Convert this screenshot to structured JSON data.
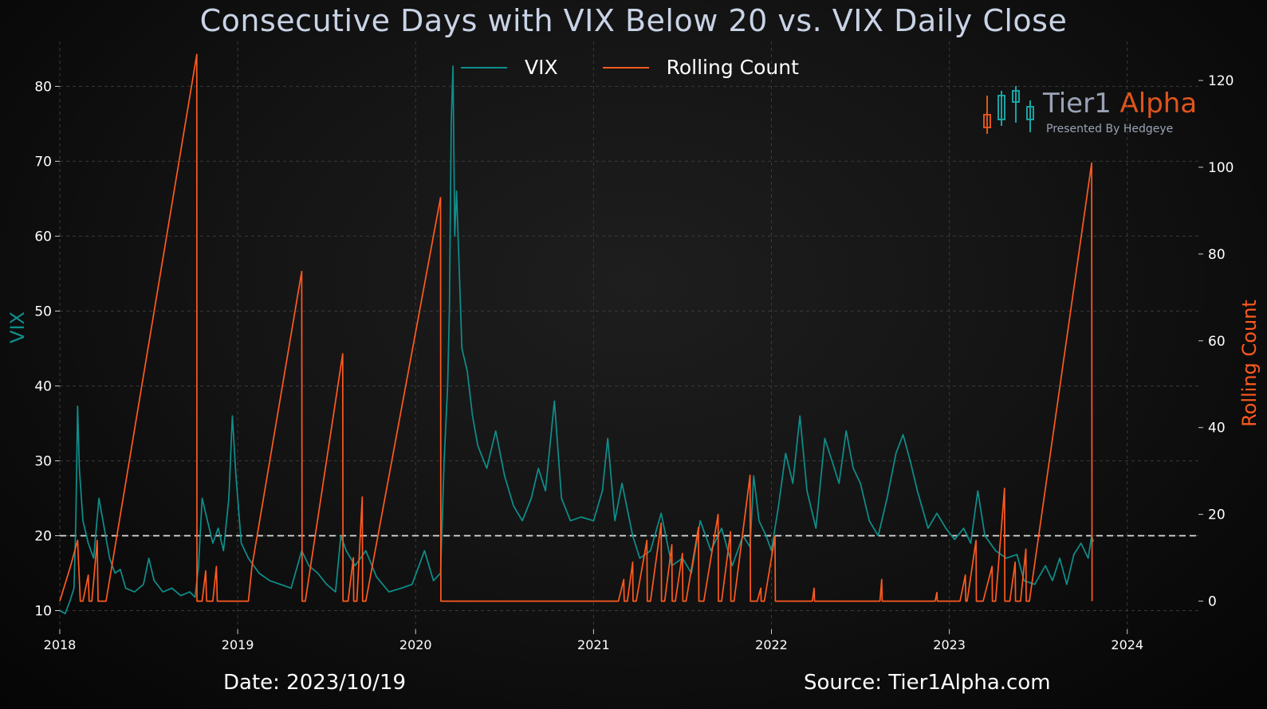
{
  "title": "Consecutive Days with VIX Below 20 vs. VIX Daily Close",
  "footer": {
    "date": "Date: 2023/10/19",
    "source": "Source: Tier1Alpha.com"
  },
  "logo": {
    "name_part1": "Tier1",
    "name_part2": "Alpha",
    "tagline": "Presented By Hedgeye"
  },
  "colors": {
    "vix": "#0e8f8c",
    "rolling": "#ff5a1f",
    "threshold": "#dddddd",
    "grid": "#3a3a3a",
    "title": "#c9d3e6",
    "logo_gray": "#9aa3b5",
    "logo_orange": "#e0541d"
  },
  "chart_data": {
    "type": "line",
    "title": "Consecutive Days with VIX Below 20 vs. VIX Daily Close",
    "xlabel": "",
    "ylabel": "VIX",
    "y2label": "Rolling Count",
    "xlim": [
      2018.0,
      2024.4
    ],
    "ylim": [
      7.5,
      86
    ],
    "y2lim": [
      -6.5,
      129
    ],
    "xticks": [
      2018,
      2019,
      2020,
      2021,
      2022,
      2023,
      2024
    ],
    "xtick_labels": [
      "2018",
      "2019",
      "2020",
      "2021",
      "2022",
      "2023",
      "2024"
    ],
    "yticks": [
      10,
      20,
      30,
      40,
      50,
      60,
      70,
      80
    ],
    "y2ticks": [
      0,
      20,
      40,
      60,
      80,
      100,
      120
    ],
    "threshold": 20,
    "legend": [
      "VIX",
      "Rolling Count"
    ],
    "legend_position": "top-center",
    "grid": true,
    "series": [
      {
        "name": "VIX",
        "axis": "left",
        "points": [
          [
            2018.0,
            10.0
          ],
          [
            2018.03,
            9.6
          ],
          [
            2018.06,
            11.5
          ],
          [
            2018.08,
            13.0
          ],
          [
            2018.09,
            22.0
          ],
          [
            2018.1,
            37.3
          ],
          [
            2018.11,
            29.0
          ],
          [
            2018.13,
            22.0
          ],
          [
            2018.16,
            19.0
          ],
          [
            2018.19,
            17.0
          ],
          [
            2018.22,
            25.0
          ],
          [
            2018.25,
            21.0
          ],
          [
            2018.28,
            17.0
          ],
          [
            2018.31,
            15.0
          ],
          [
            2018.34,
            15.5
          ],
          [
            2018.37,
            13.0
          ],
          [
            2018.42,
            12.5
          ],
          [
            2018.47,
            13.5
          ],
          [
            2018.5,
            17.0
          ],
          [
            2018.53,
            14.0
          ],
          [
            2018.58,
            12.5
          ],
          [
            2018.63,
            13.0
          ],
          [
            2018.68,
            12.0
          ],
          [
            2018.73,
            12.5
          ],
          [
            2018.76,
            11.8
          ],
          [
            2018.78,
            16.0
          ],
          [
            2018.8,
            25.0
          ],
          [
            2018.83,
            22.0
          ],
          [
            2018.86,
            19.0
          ],
          [
            2018.89,
            21.0
          ],
          [
            2018.92,
            18.0
          ],
          [
            2018.95,
            25.0
          ],
          [
            2018.97,
            36.0
          ],
          [
            2018.99,
            28.0
          ],
          [
            2019.02,
            19.0
          ],
          [
            2019.06,
            17.0
          ],
          [
            2019.12,
            15.0
          ],
          [
            2019.18,
            14.0
          ],
          [
            2019.24,
            13.5
          ],
          [
            2019.3,
            13.0
          ],
          [
            2019.36,
            18.0
          ],
          [
            2019.4,
            16.0
          ],
          [
            2019.45,
            15.0
          ],
          [
            2019.5,
            13.5
          ],
          [
            2019.55,
            12.5
          ],
          [
            2019.58,
            20.0
          ],
          [
            2019.61,
            18.0
          ],
          [
            2019.66,
            16.0
          ],
          [
            2019.72,
            18.0
          ],
          [
            2019.78,
            14.5
          ],
          [
            2019.85,
            12.5
          ],
          [
            2019.92,
            13.0
          ],
          [
            2019.98,
            13.5
          ],
          [
            2020.05,
            18.0
          ],
          [
            2020.1,
            14.0
          ],
          [
            2020.14,
            15.0
          ],
          [
            2020.16,
            30.0
          ],
          [
            2020.18,
            40.0
          ],
          [
            2020.19,
            50.0
          ],
          [
            2020.2,
            75.0
          ],
          [
            2020.21,
            82.7
          ],
          [
            2020.22,
            60.0
          ],
          [
            2020.23,
            66.0
          ],
          [
            2020.26,
            45.0
          ],
          [
            2020.29,
            42.0
          ],
          [
            2020.32,
            36.0
          ],
          [
            2020.35,
            32.0
          ],
          [
            2020.4,
            29.0
          ],
          [
            2020.45,
            34.0
          ],
          [
            2020.5,
            28.0
          ],
          [
            2020.55,
            24.0
          ],
          [
            2020.6,
            22.0
          ],
          [
            2020.65,
            25.0
          ],
          [
            2020.69,
            29.0
          ],
          [
            2020.73,
            26.0
          ],
          [
            2020.78,
            38.0
          ],
          [
            2020.82,
            25.0
          ],
          [
            2020.87,
            22.0
          ],
          [
            2020.93,
            22.5
          ],
          [
            2021.0,
            22.0
          ],
          [
            2021.05,
            26.0
          ],
          [
            2021.08,
            33.0
          ],
          [
            2021.12,
            22.0
          ],
          [
            2021.16,
            27.0
          ],
          [
            2021.22,
            20.0
          ],
          [
            2021.26,
            17.0
          ],
          [
            2021.32,
            18.0
          ],
          [
            2021.38,
            23.0
          ],
          [
            2021.44,
            16.0
          ],
          [
            2021.5,
            17.0
          ],
          [
            2021.55,
            15.0
          ],
          [
            2021.6,
            22.0
          ],
          [
            2021.66,
            18.0
          ],
          [
            2021.72,
            21.0
          ],
          [
            2021.78,
            16.0
          ],
          [
            2021.84,
            20.0
          ],
          [
            2021.88,
            18.5
          ],
          [
            2021.9,
            28.0
          ],
          [
            2021.93,
            22.0
          ],
          [
            2021.97,
            20.0
          ],
          [
            2022.0,
            18.0
          ],
          [
            2022.04,
            24.0
          ],
          [
            2022.08,
            31.0
          ],
          [
            2022.12,
            27.0
          ],
          [
            2022.16,
            36.0
          ],
          [
            2022.2,
            26.0
          ],
          [
            2022.25,
            21.0
          ],
          [
            2022.3,
            33.0
          ],
          [
            2022.34,
            30.0
          ],
          [
            2022.38,
            27.0
          ],
          [
            2022.42,
            34.0
          ],
          [
            2022.46,
            29.0
          ],
          [
            2022.5,
            27.0
          ],
          [
            2022.55,
            22.0
          ],
          [
            2022.6,
            20.0
          ],
          [
            2022.65,
            25.0
          ],
          [
            2022.7,
            31.0
          ],
          [
            2022.74,
            33.5
          ],
          [
            2022.78,
            30.0
          ],
          [
            2022.82,
            26.0
          ],
          [
            2022.88,
            21.0
          ],
          [
            2022.93,
            23.0
          ],
          [
            2022.98,
            21.0
          ],
          [
            2023.03,
            19.5
          ],
          [
            2023.08,
            21.0
          ],
          [
            2023.12,
            19.0
          ],
          [
            2023.16,
            26.0
          ],
          [
            2023.2,
            20.0
          ],
          [
            2023.26,
            18.0
          ],
          [
            2023.32,
            17.0
          ],
          [
            2023.38,
            17.5
          ],
          [
            2023.42,
            14.0
          ],
          [
            2023.48,
            13.5
          ],
          [
            2023.54,
            16.0
          ],
          [
            2023.58,
            14.0
          ],
          [
            2023.62,
            17.0
          ],
          [
            2023.66,
            13.5
          ],
          [
            2023.7,
            17.5
          ],
          [
            2023.74,
            19.0
          ],
          [
            2023.78,
            17.0
          ],
          [
            2023.8,
            20.0
          ],
          [
            2023.81,
            19.2
          ]
        ]
      },
      {
        "name": "Rolling Count",
        "axis": "right",
        "points": [
          [
            2018.0,
            0
          ],
          [
            2018.06,
            8
          ],
          [
            2018.1,
            14
          ],
          [
            2018.115,
            0
          ],
          [
            2018.13,
            0
          ],
          [
            2018.16,
            6
          ],
          [
            2018.165,
            0
          ],
          [
            2018.18,
            0
          ],
          [
            2018.21,
            14
          ],
          [
            2018.215,
            0
          ],
          [
            2018.26,
            0
          ],
          [
            2018.77,
            126
          ],
          [
            2018.771,
            0
          ],
          [
            2018.8,
            0
          ],
          [
            2018.82,
            7
          ],
          [
            2018.825,
            0
          ],
          [
            2018.86,
            0
          ],
          [
            2018.88,
            8
          ],
          [
            2018.885,
            0
          ],
          [
            2019.06,
            0
          ],
          [
            2019.08,
            8
          ],
          [
            2019.36,
            76
          ],
          [
            2019.362,
            0
          ],
          [
            2019.38,
            0
          ],
          [
            2019.59,
            57
          ],
          [
            2019.592,
            0
          ],
          [
            2019.62,
            0
          ],
          [
            2019.65,
            10
          ],
          [
            2019.652,
            0
          ],
          [
            2019.67,
            0
          ],
          [
            2019.7,
            24
          ],
          [
            2019.702,
            0
          ],
          [
            2019.72,
            0
          ],
          [
            2020.14,
            93
          ],
          [
            2020.142,
            0
          ],
          [
            2020.9,
            0
          ],
          [
            2021.14,
            0
          ],
          [
            2021.17,
            5
          ],
          [
            2021.172,
            0
          ],
          [
            2021.19,
            0
          ],
          [
            2021.22,
            9
          ],
          [
            2021.222,
            0
          ],
          [
            2021.24,
            0
          ],
          [
            2021.3,
            14
          ],
          [
            2021.302,
            0
          ],
          [
            2021.32,
            0
          ],
          [
            2021.38,
            18
          ],
          [
            2021.382,
            0
          ],
          [
            2021.4,
            0
          ],
          [
            2021.44,
            13
          ],
          [
            2021.442,
            0
          ],
          [
            2021.46,
            0
          ],
          [
            2021.5,
            11
          ],
          [
            2021.502,
            0
          ],
          [
            2021.52,
            0
          ],
          [
            2021.59,
            17
          ],
          [
            2021.592,
            0
          ],
          [
            2021.62,
            0
          ],
          [
            2021.7,
            20
          ],
          [
            2021.702,
            0
          ],
          [
            2021.72,
            0
          ],
          [
            2021.77,
            16
          ],
          [
            2021.772,
            0
          ],
          [
            2021.79,
            0
          ],
          [
            2021.88,
            29
          ],
          [
            2021.882,
            0
          ],
          [
            2021.92,
            0
          ],
          [
            2021.94,
            3
          ],
          [
            2021.942,
            0
          ],
          [
            2021.96,
            0
          ],
          [
            2022.02,
            15
          ],
          [
            2022.022,
            0
          ],
          [
            2022.23,
            0
          ],
          [
            2022.24,
            3
          ],
          [
            2022.242,
            0
          ],
          [
            2022.61,
            0
          ],
          [
            2022.62,
            5
          ],
          [
            2022.622,
            0
          ],
          [
            2022.92,
            0
          ],
          [
            2022.93,
            2
          ],
          [
            2022.932,
            0
          ],
          [
            2023.06,
            0
          ],
          [
            2023.09,
            6
          ],
          [
            2023.092,
            0
          ],
          [
            2023.1,
            0
          ],
          [
            2023.15,
            14
          ],
          [
            2023.152,
            0
          ],
          [
            2023.19,
            0
          ],
          [
            2023.24,
            8
          ],
          [
            2023.242,
            0
          ],
          [
            2023.26,
            0
          ],
          [
            2023.31,
            26
          ],
          [
            2023.312,
            0
          ],
          [
            2023.34,
            0
          ],
          [
            2023.37,
            9
          ],
          [
            2023.372,
            0
          ],
          [
            2023.4,
            0
          ],
          [
            2023.43,
            12
          ],
          [
            2023.432,
            0
          ],
          [
            2023.45,
            0
          ],
          [
            2023.8,
            101
          ],
          [
            2023.802,
            0
          ]
        ]
      }
    ]
  }
}
